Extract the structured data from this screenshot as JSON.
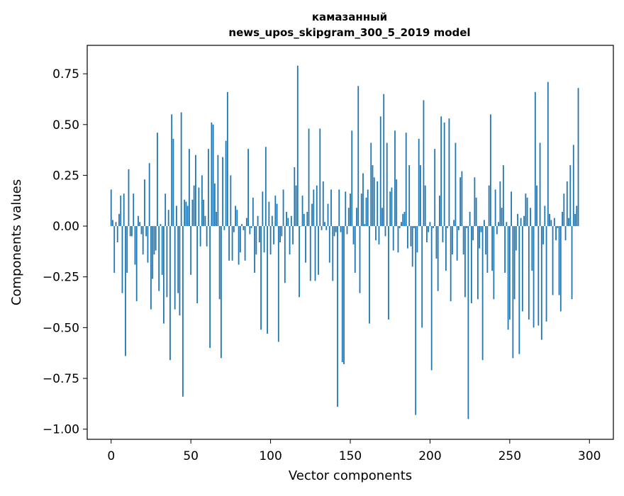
{
  "chart_data": {
    "type": "bar",
    "title": [
      "камазанный",
      "news_upos_skipgram_300_5_2019 model"
    ],
    "xlabel": "Vector components",
    "ylabel": "Components values",
    "xlim": [
      -15,
      315
    ],
    "ylim": [
      -1.05,
      0.89
    ],
    "xticks": [
      0,
      50,
      100,
      150,
      200,
      250,
      300
    ],
    "xtick_labels": [
      "0",
      "50",
      "100",
      "150",
      "200",
      "250",
      "300"
    ],
    "yticks": [
      -1.0,
      -0.75,
      -0.5,
      -0.25,
      0.0,
      0.25,
      0.5,
      0.75
    ],
    "ytick_labels": [
      "−1.00",
      "−0.75",
      "−0.50",
      "−0.25",
      "0.00",
      "0.25",
      "0.50",
      "0.75"
    ],
    "grid": false,
    "bar_color": "#1f77b4",
    "series": [
      {
        "values": [
          0.18,
          0.03,
          -0.23,
          0.02,
          -0.08,
          0.06,
          0.15,
          -0.33,
          0.16,
          -0.64,
          -0.23,
          0.28,
          -0.05,
          -0.05,
          0.16,
          -0.19,
          -0.37,
          0.05,
          0.02,
          -0.04,
          -0.14,
          0.23,
          -0.05,
          -0.18,
          0.31,
          -0.41,
          -0.26,
          -0.14,
          -0.12,
          0.46,
          -0.32,
          0.01,
          -0.24,
          -0.48,
          0.16,
          -0.35,
          0.08,
          -0.66,
          0.55,
          0.43,
          -0.41,
          0.1,
          -0.33,
          -0.44,
          0.56,
          -0.84,
          0.13,
          0.12,
          0.1,
          0.38,
          -0.24,
          0.13,
          0.2,
          0.35,
          -0.38,
          0.19,
          -0.1,
          0.25,
          0.13,
          0.05,
          -0.1,
          0.38,
          -0.6,
          0.51,
          0.5,
          0.21,
          0.07,
          0.35,
          -0.36,
          -0.65,
          0.34,
          -0.02,
          0.42,
          0.66,
          -0.17,
          0.25,
          -0.17,
          -0.03,
          0.1,
          0.08,
          -0.19,
          -0.13,
          0.01,
          -0.02,
          -0.17,
          0.04,
          0.38,
          -0.04,
          -0.01,
          0.14,
          -0.23,
          -0.14,
          0.05,
          -0.08,
          -0.51,
          0.17,
          -0.13,
          0.39,
          -0.53,
          0.12,
          -0.14,
          0.05,
          -0.09,
          0.15,
          0.11,
          -0.57,
          -0.08,
          -0.05,
          0.18,
          -0.28,
          0.07,
          0.04,
          -0.14,
          0.05,
          -0.09,
          0.29,
          0.2,
          0.79,
          -0.35,
          0.0,
          0.15,
          0.06,
          -0.18,
          0.07,
          0.48,
          -0.27,
          0.11,
          0.18,
          -0.27,
          0.2,
          -0.24,
          0.48,
          -0.02,
          0.22,
          0.02,
          -0.02,
          0.11,
          -0.18,
          0.18,
          -0.27,
          -0.05,
          -0.03,
          -0.89,
          0.18,
          -0.03,
          -0.67,
          -0.68,
          0.17,
          -0.04,
          0.09,
          0.16,
          0.47,
          -0.09,
          -0.23,
          0.09,
          0.69,
          -0.33,
          0.16,
          0.26,
          0.01,
          0.14,
          0.18,
          -0.48,
          0.41,
          0.3,
          0.24,
          -0.07,
          0.22,
          -0.09,
          0.54,
          0.09,
          0.65,
          -0.05,
          0.41,
          -0.46,
          0.17,
          0.19,
          -0.12,
          0.47,
          0.23,
          -0.13,
          -0.01,
          0.02,
          0.06,
          0.07,
          0.46,
          -0.11,
          0.3,
          -0.1,
          -0.2,
          -0.01,
          -0.93,
          -0.13,
          0.43,
          0.3,
          -0.5,
          0.62,
          0.2,
          -0.08,
          -0.03,
          0.02,
          -0.71,
          -0.01,
          0.38,
          -0.16,
          -0.32,
          0.15,
          0.54,
          -0.08,
          0.51,
          -0.22,
          -0.01,
          0.53,
          -0.37,
          -0.14,
          0.03,
          0.41,
          -0.17,
          -0.02,
          0.24,
          0.27,
          -0.14,
          -0.35,
          -0.01,
          -0.95,
          0.07,
          -0.38,
          -0.07,
          0.24,
          0.14,
          -0.36,
          -0.11,
          -0.03,
          -0.66,
          0.03,
          -0.14,
          -0.23,
          0.2,
          0.55,
          -0.22,
          -0.36,
          0.18,
          -0.04,
          0.02,
          0.22,
          0.09,
          0.3,
          -0.23,
          0.02,
          -0.51,
          -0.46,
          0.17,
          -0.65,
          -0.36,
          -0.12,
          0.06,
          -0.63,
          0.04,
          -0.42,
          0.05,
          0.16,
          0.14,
          -0.46,
          0.09,
          -0.22,
          -0.5,
          0.66,
          0.2,
          -0.49,
          0.41,
          -0.56,
          -0.09,
          0.1,
          -0.47,
          0.71,
          0.06,
          0.03,
          -0.34,
          0.04,
          -0.07,
          -0.01,
          -0.34,
          -0.42,
          0.07,
          0.16,
          -0.07,
          0.22,
          0.04,
          0.3,
          -0.36,
          0.4,
          0.06,
          0.1,
          0.68
        ]
      }
    ]
  }
}
